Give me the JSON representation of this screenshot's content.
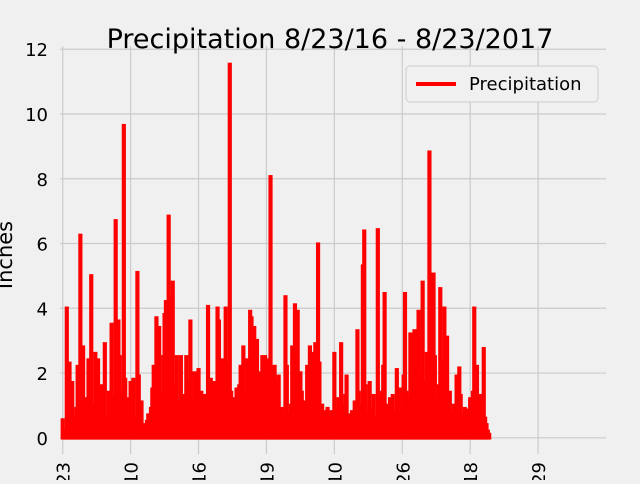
{
  "chart_data": {
    "type": "bar",
    "title": "Precipitation 8/23/16 - 8/23/2017",
    "xlabel": "",
    "ylabel": "Inches",
    "ylim": [
      0,
      12
    ],
    "yticks": [
      0,
      2,
      4,
      6,
      8,
      10,
      12
    ],
    "xlim": [
      -2,
      400
    ],
    "xticks": [
      {
        "label": "23",
        "index": 0
      },
      {
        "label": "10",
        "index": 50
      },
      {
        "label": "16",
        "index": 100
      },
      {
        "label": "19",
        "index": 150
      },
      {
        "label": "10",
        "index": 200
      },
      {
        "label": "26",
        "index": 250
      },
      {
        "label": "18",
        "index": 300
      },
      {
        "label": "29",
        "index": 350
      }
    ],
    "grid": true,
    "legend": {
      "position": "top-right"
    },
    "series": [
      {
        "name": "Precipitation",
        "color": "#ff0000",
        "points": [
          [
            0,
            0.55
          ],
          [
            1,
            0.2
          ],
          [
            2,
            0.1
          ],
          [
            3,
            4.0
          ],
          [
            4,
            0.3
          ],
          [
            5,
            2.3
          ],
          [
            6,
            0.5
          ],
          [
            7,
            1.7
          ],
          [
            8,
            0.6
          ],
          [
            9,
            0.2
          ],
          [
            10,
            0.9
          ],
          [
            11,
            2.2
          ],
          [
            12,
            0.4
          ],
          [
            13,
            6.25
          ],
          [
            14,
            1.0
          ],
          [
            15,
            2.8
          ],
          [
            16,
            0.5
          ],
          [
            17,
            1.2
          ],
          [
            18,
            0.3
          ],
          [
            19,
            2.4
          ],
          [
            20,
            0.8
          ],
          [
            21,
            5.0
          ],
          [
            22,
            1.0
          ],
          [
            23,
            0.4
          ],
          [
            24,
            2.6
          ],
          [
            25,
            0.6
          ],
          [
            26,
            2.4
          ],
          [
            27,
            1.3
          ],
          [
            28,
            0.2
          ],
          [
            29,
            1.6
          ],
          [
            30,
            0.8
          ],
          [
            31,
            2.9
          ],
          [
            32,
            0.3
          ],
          [
            33,
            0.6
          ],
          [
            34,
            1.4
          ],
          [
            35,
            0.2
          ],
          [
            36,
            3.5
          ],
          [
            37,
            0.5
          ],
          [
            38,
            1.2
          ],
          [
            39,
            6.7
          ],
          [
            40,
            0.9
          ],
          [
            41,
            3.6
          ],
          [
            42,
            2.5
          ],
          [
            43,
            0.7
          ],
          [
            44,
            1.4
          ],
          [
            45,
            9.64
          ],
          [
            46,
            1.8
          ],
          [
            47,
            0.6
          ],
          [
            48,
            1.2
          ],
          [
            49,
            0.3
          ],
          [
            50,
            1.7
          ],
          [
            51,
            0.5
          ],
          [
            52,
            1.8
          ],
          [
            53,
            0.2
          ],
          [
            54,
            0.6
          ],
          [
            55,
            5.1
          ],
          [
            56,
            1.9
          ],
          [
            57,
            0.8
          ],
          [
            58,
            1.1
          ],
          [
            59,
            0.4
          ],
          [
            60,
            0.3
          ],
          [
            61,
            0.1
          ],
          [
            62,
            0.5
          ],
          [
            63,
            0.7
          ],
          [
            64,
            0.2
          ],
          [
            65,
            0.9
          ],
          [
            66,
            1.5
          ],
          [
            67,
            2.2
          ],
          [
            68,
            0.6
          ],
          [
            69,
            3.7
          ],
          [
            70,
            1.0
          ],
          [
            71,
            3.4
          ],
          [
            72,
            0.7
          ],
          [
            73,
            1.4
          ],
          [
            74,
            2.5
          ],
          [
            75,
            3.8
          ],
          [
            76,
            4.2
          ],
          [
            77,
            0.9
          ],
          [
            78,
            6.84
          ],
          [
            79,
            2.1
          ],
          [
            80,
            4.3
          ],
          [
            81,
            4.8
          ],
          [
            82,
            1.3
          ],
          [
            83,
            1.6
          ],
          [
            84,
            2.5
          ],
          [
            85,
            0.6
          ],
          [
            86,
            1.1
          ],
          [
            87,
            2.5
          ],
          [
            88,
            0.9
          ],
          [
            89,
            1.3
          ],
          [
            90,
            0.3
          ],
          [
            91,
            2.5
          ],
          [
            92,
            1.7
          ],
          [
            93,
            0.5
          ],
          [
            94,
            3.6
          ],
          [
            95,
            0.7
          ],
          [
            96,
            1.1
          ],
          [
            97,
            2.0
          ],
          [
            98,
            0.4
          ],
          [
            99,
            1.8
          ],
          [
            100,
            2.1
          ],
          [
            101,
            0.8
          ],
          [
            102,
            1.4
          ],
          [
            103,
            0.3
          ],
          [
            104,
            1.3
          ],
          [
            105,
            0.6
          ],
          [
            106,
            1.0
          ],
          [
            107,
            4.05
          ],
          [
            108,
            0.9
          ],
          [
            109,
            1.8
          ],
          [
            110,
            0.5
          ],
          [
            111,
            1.7
          ],
          [
            112,
            0.2
          ],
          [
            113,
            1.6
          ],
          [
            114,
            4.0
          ],
          [
            115,
            3.6
          ],
          [
            116,
            0.8
          ],
          [
            117,
            1.2
          ],
          [
            118,
            2.4
          ],
          [
            119,
            0.4
          ],
          [
            120,
            4.0
          ],
          [
            121,
            2.3
          ],
          [
            122,
            0.6
          ],
          [
            123,
            11.53
          ],
          [
            124,
            1.4
          ],
          [
            125,
            0.5
          ],
          [
            126,
            1.2
          ],
          [
            127,
            0.9
          ],
          [
            128,
            1.5
          ],
          [
            129,
            0.3
          ],
          [
            130,
            1.6
          ],
          [
            131,
            2.2
          ],
          [
            132,
            0.7
          ],
          [
            133,
            2.8
          ],
          [
            134,
            1.3
          ],
          [
            135,
            0.6
          ],
          [
            136,
            2.4
          ],
          [
            137,
            1.1
          ],
          [
            138,
            3.9
          ],
          [
            139,
            3.7
          ],
          [
            140,
            2.0
          ],
          [
            141,
            3.4
          ],
          [
            142,
            0.8
          ],
          [
            143,
            3.0
          ],
          [
            144,
            1.6
          ],
          [
            145,
            0.4
          ],
          [
            146,
            2.0
          ],
          [
            147,
            2.5
          ],
          [
            148,
            0.7
          ],
          [
            149,
            2.5
          ],
          [
            150,
            1.2
          ],
          [
            151,
            2.4
          ],
          [
            152,
            0.5
          ],
          [
            153,
            8.06
          ],
          [
            154,
            1.3
          ],
          [
            155,
            0.3
          ],
          [
            156,
            2.2
          ],
          [
            157,
            1.7
          ],
          [
            158,
            1.5
          ],
          [
            159,
            1.9
          ],
          [
            160,
            0.4
          ],
          [
            161,
            0.9
          ],
          [
            162,
            0.6
          ],
          [
            163,
            0.3
          ],
          [
            164,
            4.35
          ],
          [
            165,
            2.2
          ],
          [
            166,
            0.7
          ],
          [
            167,
            0.5
          ],
          [
            168,
            1.0
          ],
          [
            169,
            2.8
          ],
          [
            170,
            0.6
          ],
          [
            171,
            4.1
          ],
          [
            172,
            0.9
          ],
          [
            173,
            3.9
          ],
          [
            174,
            0.7
          ],
          [
            175,
            2.0
          ],
          [
            176,
            1.4
          ],
          [
            177,
            0.2
          ],
          [
            178,
            1.1
          ],
          [
            179,
            0.4
          ],
          [
            180,
            2.2
          ],
          [
            181,
            1.5
          ],
          [
            182,
            2.8
          ],
          [
            183,
            0.6
          ],
          [
            184,
            2.6
          ],
          [
            185,
            1.3
          ],
          [
            186,
            2.9
          ],
          [
            187,
            0.8
          ],
          [
            188,
            5.98
          ],
          [
            189,
            2.3
          ],
          [
            190,
            0.9
          ],
          [
            191,
            1.0
          ],
          [
            192,
            0.5
          ],
          [
            193,
            0.8
          ],
          [
            194,
            0.3
          ],
          [
            195,
            0.9
          ],
          [
            196,
            0.2
          ],
          [
            197,
            0.6
          ],
          [
            198,
            0.8
          ],
          [
            199,
            0.4
          ],
          [
            200,
            2.6
          ],
          [
            201,
            0.8
          ],
          [
            202,
            0.3
          ],
          [
            203,
            1.2
          ],
          [
            204,
            0.6
          ],
          [
            205,
            2.9
          ],
          [
            206,
            1.0
          ],
          [
            207,
            0.4
          ],
          [
            208,
            1.3
          ],
          [
            209,
            1.9
          ],
          [
            210,
            0.5
          ],
          [
            211,
            0.7
          ],
          [
            212,
            0.2
          ],
          [
            213,
            0.8
          ],
          [
            214,
            0.5
          ],
          [
            215,
            1.1
          ],
          [
            216,
            0.7
          ],
          [
            217,
            3.3
          ],
          [
            218,
            1.4
          ],
          [
            219,
            0.6
          ],
          [
            220,
            1.0
          ],
          [
            221,
            5.3
          ],
          [
            222,
            6.38
          ],
          [
            223,
            1.6
          ],
          [
            224,
            0.8
          ],
          [
            225,
            0.4
          ],
          [
            226,
            1.7
          ],
          [
            227,
            0.9
          ],
          [
            228,
            0.5
          ],
          [
            229,
            1.3
          ],
          [
            230,
            0.3
          ],
          [
            231,
            0.6
          ],
          [
            232,
            6.42
          ],
          [
            233,
            1.2
          ],
          [
            234,
            0.8
          ],
          [
            235,
            1.4
          ],
          [
            236,
            2.2
          ],
          [
            237,
            4.45
          ],
          [
            238,
            1.0
          ],
          [
            239,
            0.5
          ],
          [
            240,
            0.3
          ],
          [
            241,
            1.2
          ],
          [
            242,
            0.7
          ],
          [
            243,
            1.3
          ],
          [
            244,
            0.4
          ],
          [
            245,
            0.8
          ],
          [
            246,
            2.1
          ],
          [
            247,
            0.6
          ],
          [
            248,
            1.5
          ],
          [
            249,
            0.3
          ],
          [
            250,
            0.9
          ],
          [
            251,
            1.9
          ],
          [
            252,
            4.45
          ],
          [
            253,
            1.4
          ],
          [
            254,
            0.7
          ],
          [
            255,
            1.2
          ],
          [
            256,
            3.2
          ],
          [
            257,
            0.5
          ],
          [
            258,
            1.0
          ],
          [
            259,
            3.3
          ],
          [
            260,
            1.4
          ],
          [
            261,
            0.8
          ],
          [
            262,
            3.9
          ],
          [
            263,
            2.0
          ],
          [
            264,
            0.6
          ],
          [
            265,
            4.8
          ],
          [
            266,
            1.7
          ],
          [
            267,
            0.9
          ],
          [
            268,
            2.6
          ],
          [
            269,
            0.4
          ],
          [
            270,
            8.82
          ],
          [
            271,
            3.4
          ],
          [
            272,
            1.5
          ],
          [
            273,
            5.05
          ],
          [
            274,
            2.5
          ],
          [
            275,
            1.1
          ],
          [
            276,
            0.7
          ],
          [
            277,
            1.6
          ],
          [
            278,
            4.6
          ],
          [
            279,
            2.3
          ],
          [
            280,
            1.3
          ],
          [
            281,
            4.0
          ],
          [
            282,
            0.9
          ],
          [
            283,
            3.1
          ],
          [
            284,
            0.6
          ],
          [
            285,
            1.4
          ],
          [
            286,
            0.3
          ],
          [
            287,
            0.8
          ],
          [
            288,
            1.0
          ],
          [
            289,
            0.5
          ],
          [
            290,
            1.9
          ],
          [
            291,
            0.6
          ],
          [
            292,
            2.15
          ],
          [
            293,
            1.3
          ],
          [
            294,
            0.7
          ],
          [
            295,
            0.4
          ],
          [
            296,
            0.9
          ],
          [
            297,
            0.2
          ],
          [
            298,
            0.85
          ],
          [
            299,
            0.5
          ],
          [
            300,
            1.2
          ],
          [
            301,
            0.4
          ],
          [
            302,
            1.4
          ],
          [
            303,
            4.0
          ],
          [
            304,
            0.7
          ],
          [
            305,
            2.2
          ],
          [
            306,
            1.0
          ],
          [
            307,
            0.3
          ],
          [
            308,
            1.3
          ],
          [
            309,
            0.6
          ],
          [
            310,
            2.75
          ],
          [
            311,
            0.6
          ],
          [
            312,
            0.4
          ],
          [
            313,
            0.2
          ],
          [
            314,
            0.1
          ]
        ]
      }
    ]
  }
}
